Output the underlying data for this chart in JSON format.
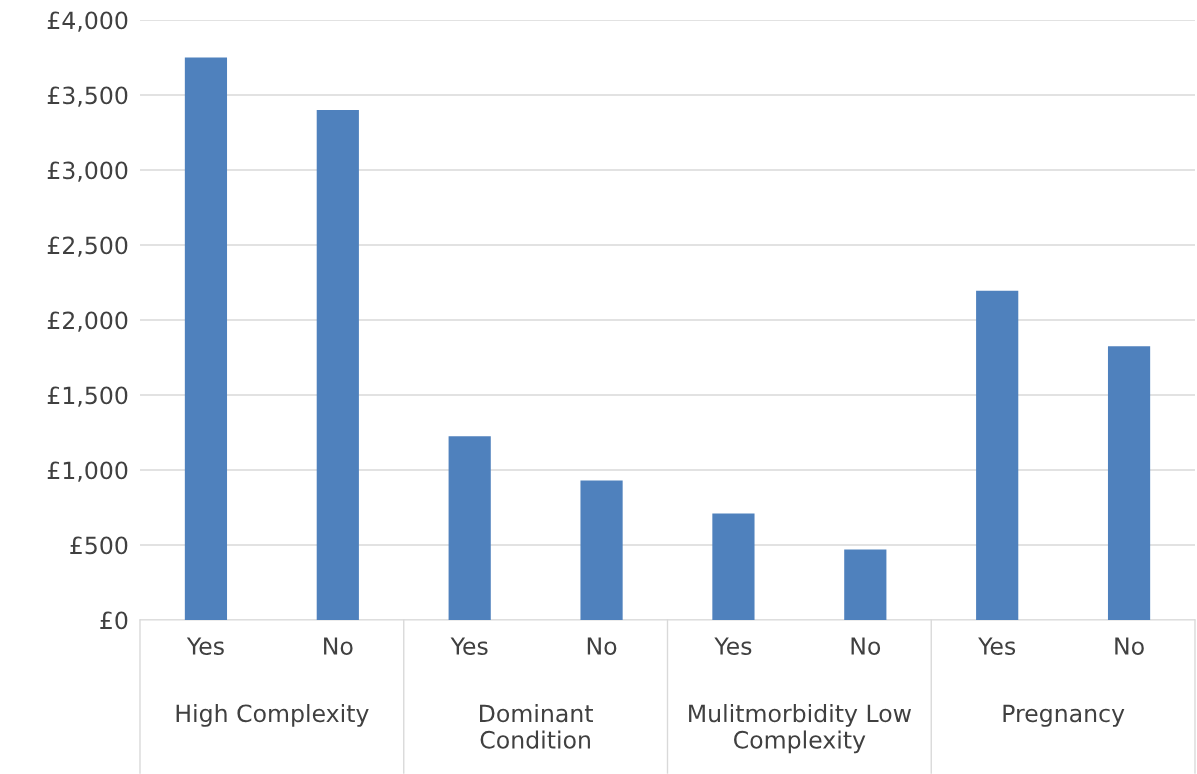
{
  "chart_data": {
    "type": "bar",
    "categories": [
      "Yes",
      "No",
      "Yes",
      "No",
      "Yes",
      "No",
      "Yes",
      "No"
    ],
    "values": [
      3750,
      3400,
      1225,
      930,
      710,
      470,
      2195,
      1825
    ],
    "color": "#4f81bd",
    "annotations": [
      "High Complexity",
      "Dominant\nCondition",
      "Mulitmorbidity Low\nComplexity",
      "Pregnancy"
    ],
    "ylim": [
      0,
      4000
    ],
    "yticks": [
      {
        "value": 0,
        "label": "£0"
      },
      {
        "value": 500,
        "label": "£500"
      },
      {
        "value": 1000,
        "label": "£1,000"
      },
      {
        "value": 1500,
        "label": "£1,500"
      },
      {
        "value": 2000,
        "label": "£2,000"
      },
      {
        "value": 2500,
        "label": "£2,500"
      },
      {
        "value": 3000,
        "label": "£3,000"
      },
      {
        "value": 3500,
        "label": "£3,500"
      },
      {
        "value": 4000,
        "label": "£4,000"
      }
    ],
    "grid": "y"
  }
}
